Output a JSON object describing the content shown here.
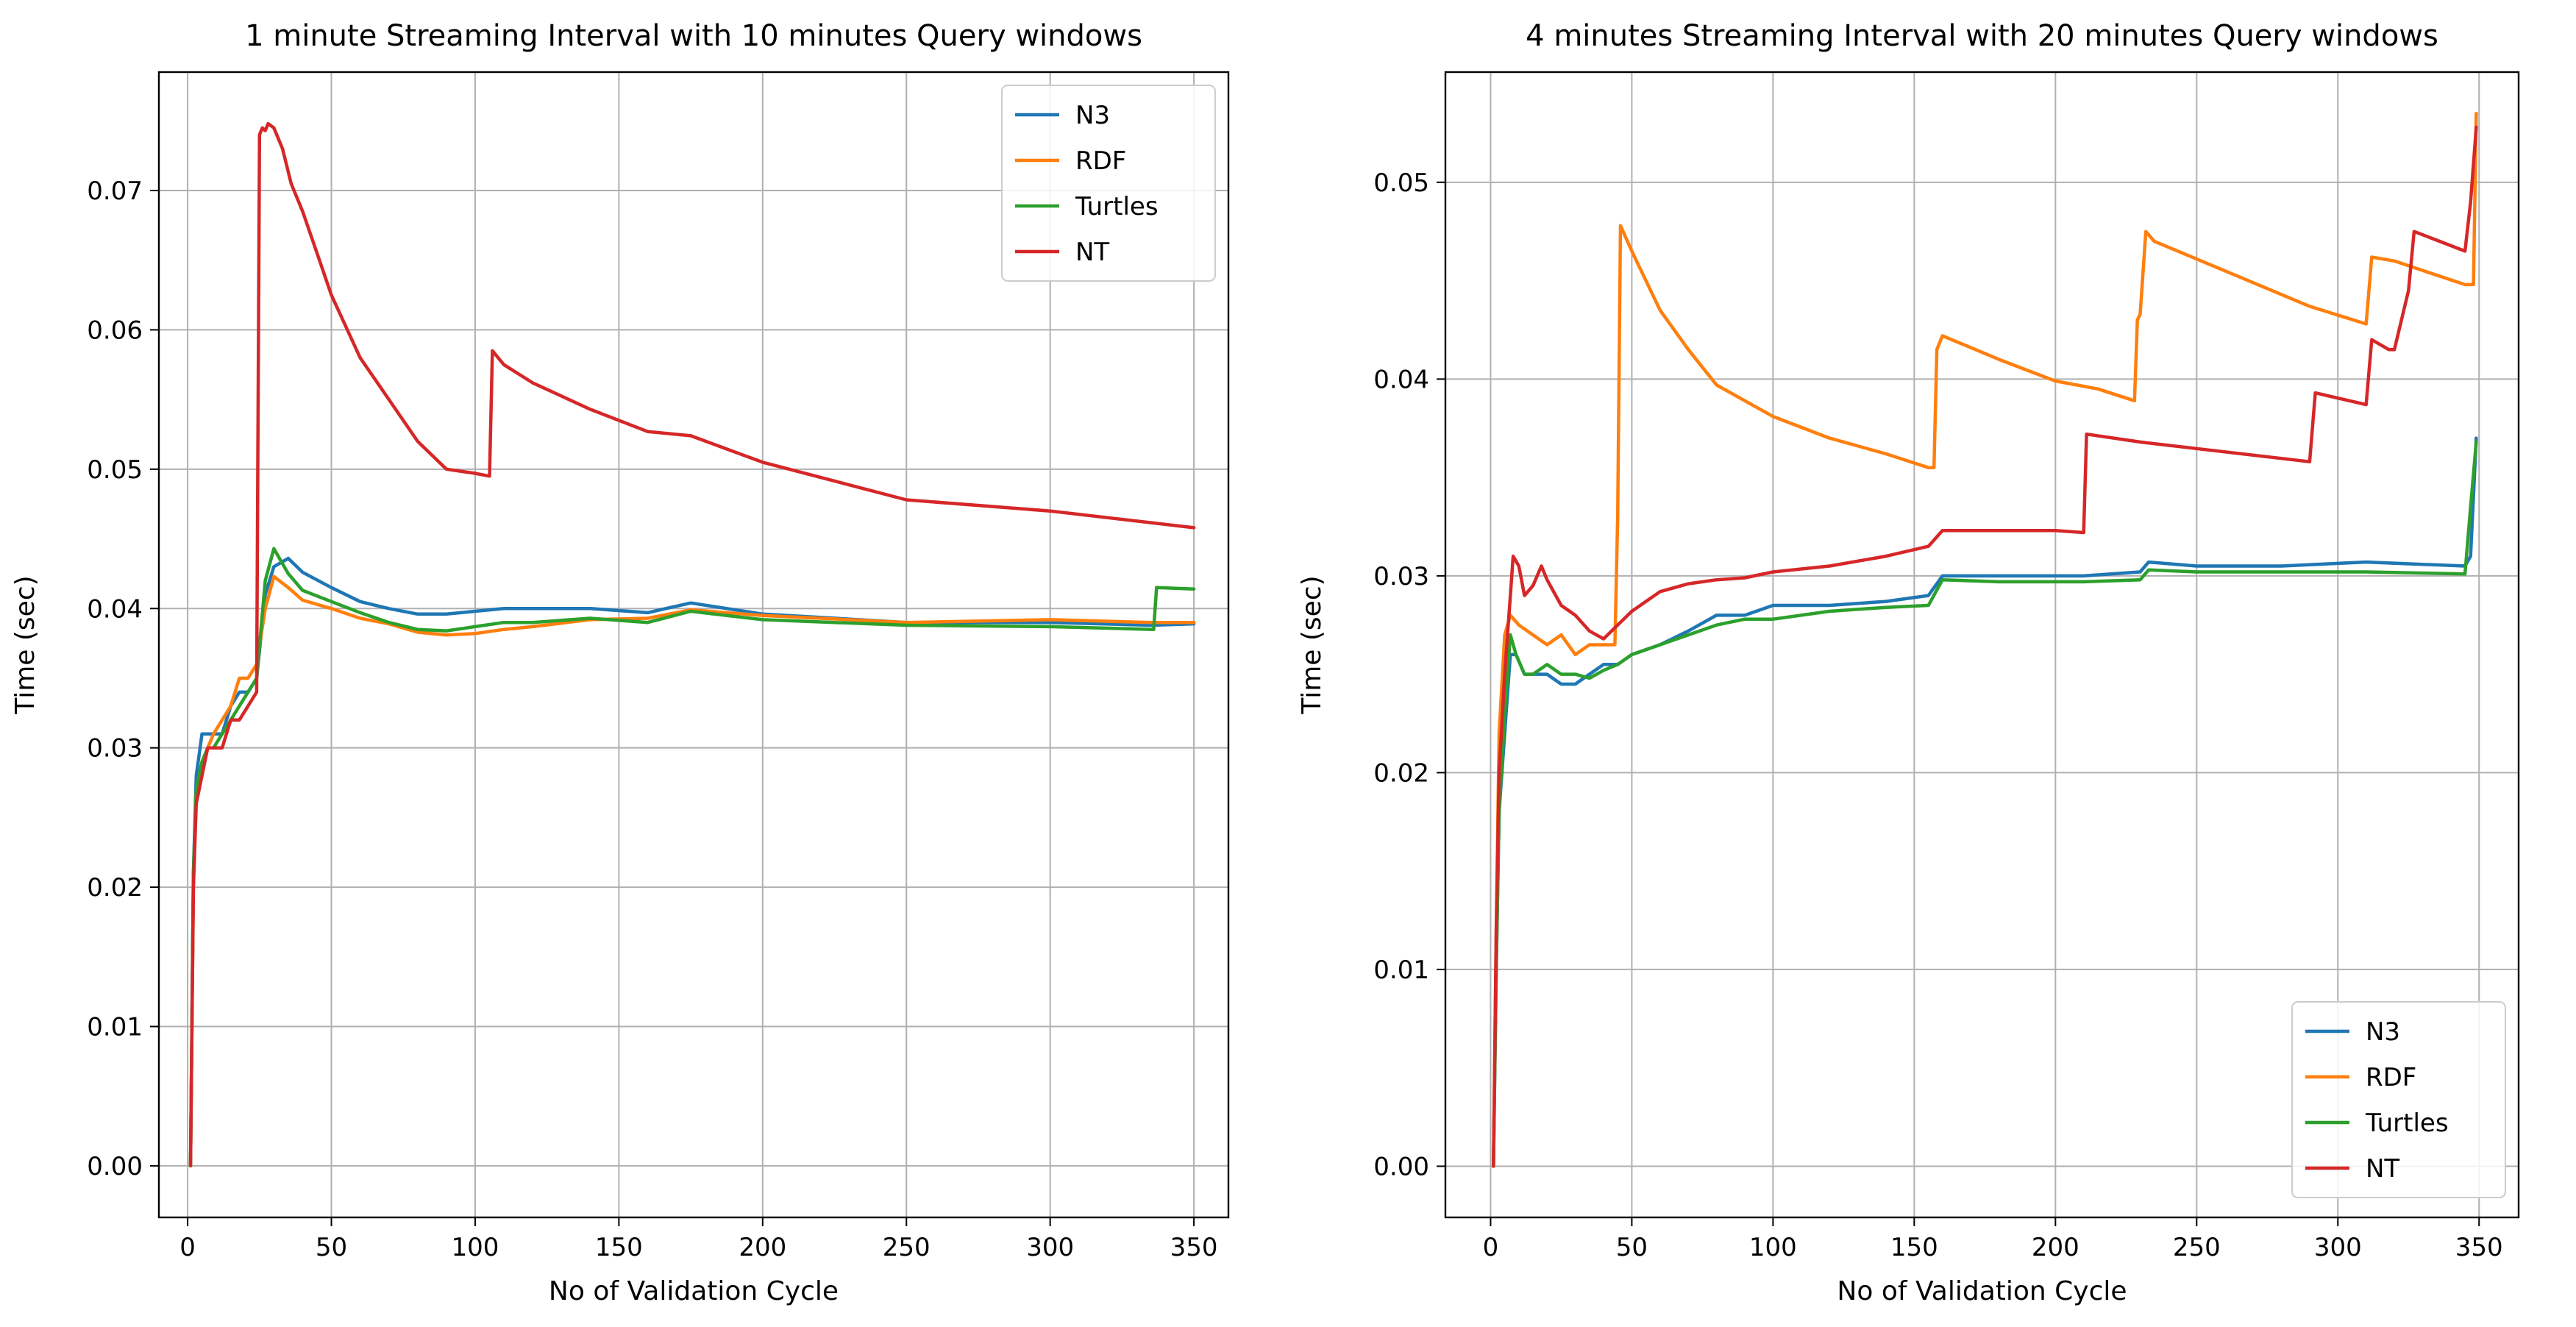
{
  "chart_data": [
    {
      "type": "line",
      "title": "1 minute Streaming Interval with 10 minutes Query windows",
      "xlabel": "No of Validation Cycle",
      "ylabel": "Time (sec)",
      "xlim": [
        -10,
        362
      ],
      "ylim": [
        -0.0037,
        0.0785
      ],
      "xticks": [
        0,
        50,
        100,
        150,
        200,
        250,
        300,
        350
      ],
      "xtick_labels": [
        "0",
        "50",
        "100",
        "150",
        "200",
        "250",
        "300",
        "350"
      ],
      "yticks": [
        0.0,
        0.01,
        0.02,
        0.03,
        0.04,
        0.05,
        0.06,
        0.07
      ],
      "ytick_labels": [
        "0.00",
        "0.01",
        "0.02",
        "0.03",
        "0.04",
        "0.05",
        "0.06",
        "0.07"
      ],
      "grid": true,
      "legend_position": "top-right",
      "series": [
        {
          "name": "N3",
          "color": "#1f77b4",
          "x": [
            1,
            2,
            3,
            5,
            7,
            9,
            12,
            15,
            18,
            21,
            24,
            27,
            30,
            35,
            40,
            50,
            60,
            70,
            80,
            90,
            100,
            110,
            120,
            140,
            160,
            175,
            200,
            250,
            300,
            335,
            350
          ],
          "y": [
            0.0,
            0.021,
            0.028,
            0.031,
            0.031,
            0.031,
            0.031,
            0.033,
            0.034,
            0.034,
            0.035,
            0.041,
            0.043,
            0.0436,
            0.0426,
            0.0415,
            0.0405,
            0.04,
            0.0396,
            0.0396,
            0.0398,
            0.04,
            0.04,
            0.04,
            0.0397,
            0.0404,
            0.0396,
            0.039,
            0.039,
            0.0388,
            0.0389
          ]
        },
        {
          "name": "RDF",
          "color": "#ff7f0e",
          "x": [
            1,
            2,
            3,
            5,
            7,
            9,
            12,
            15,
            18,
            21,
            24,
            27,
            30,
            35,
            40,
            50,
            60,
            70,
            80,
            90,
            100,
            110,
            120,
            140,
            160,
            175,
            200,
            250,
            300,
            335,
            350
          ],
          "y": [
            0.0,
            0.02,
            0.027,
            0.029,
            0.03,
            0.031,
            0.032,
            0.033,
            0.035,
            0.035,
            0.036,
            0.04,
            0.0423,
            0.0415,
            0.0406,
            0.04,
            0.0393,
            0.0389,
            0.0383,
            0.0381,
            0.0382,
            0.0385,
            0.0387,
            0.0392,
            0.0393,
            0.0399,
            0.0395,
            0.039,
            0.0392,
            0.039,
            0.039
          ]
        },
        {
          "name": "Turtles",
          "color": "#2ca02c",
          "x": [
            1,
            2,
            3,
            5,
            7,
            9,
            12,
            15,
            18,
            21,
            24,
            27,
            30,
            35,
            40,
            50,
            60,
            70,
            80,
            90,
            100,
            110,
            120,
            140,
            160,
            175,
            200,
            250,
            300,
            336,
            337,
            350
          ],
          "y": [
            0.0,
            0.021,
            0.027,
            0.029,
            0.03,
            0.03,
            0.031,
            0.032,
            0.033,
            0.034,
            0.035,
            0.042,
            0.0443,
            0.0425,
            0.0413,
            0.0405,
            0.0397,
            0.039,
            0.0385,
            0.0384,
            0.0387,
            0.039,
            0.039,
            0.0393,
            0.039,
            0.0398,
            0.0392,
            0.0388,
            0.0387,
            0.0385,
            0.0415,
            0.0414
          ]
        },
        {
          "name": "NT",
          "color": "#d62728",
          "x": [
            1,
            2,
            3,
            5,
            7,
            9,
            12,
            15,
            18,
            21,
            24,
            25,
            26,
            27,
            28,
            30,
            33,
            36,
            40,
            45,
            50,
            60,
            70,
            80,
            90,
            100,
            105,
            106,
            110,
            120,
            140,
            160,
            175,
            200,
            250,
            300,
            350
          ],
          "y": [
            0.0,
            0.02,
            0.026,
            0.028,
            0.03,
            0.03,
            0.03,
            0.032,
            0.032,
            0.033,
            0.034,
            0.074,
            0.0745,
            0.0743,
            0.0748,
            0.0745,
            0.073,
            0.0705,
            0.0685,
            0.0655,
            0.0625,
            0.058,
            0.055,
            0.052,
            0.05,
            0.0497,
            0.0495,
            0.0585,
            0.0575,
            0.0562,
            0.0543,
            0.0527,
            0.0524,
            0.0505,
            0.0478,
            0.047,
            0.0458
          ]
        }
      ]
    },
    {
      "type": "line",
      "title": "4 minutes Streaming Interval with 20 minutes Query windows",
      "xlabel": "No of Validation Cycle",
      "ylabel": "Time (sec)",
      "xlim": [
        -16,
        364
      ],
      "ylim": [
        -0.0026,
        0.0556
      ],
      "xticks": [
        0,
        50,
        100,
        150,
        200,
        250,
        300,
        350
      ],
      "xtick_labels": [
        "0",
        "50",
        "100",
        "150",
        "200",
        "250",
        "300",
        "350"
      ],
      "yticks": [
        0.0,
        0.01,
        0.02,
        0.03,
        0.04,
        0.05
      ],
      "ytick_labels": [
        "0.00",
        "0.01",
        "0.02",
        "0.03",
        "0.04",
        "0.05"
      ],
      "grid": true,
      "legend_position": "bottom-right",
      "series": [
        {
          "name": "N3",
          "color": "#1f77b4",
          "x": [
            1,
            2,
            3,
            5,
            7,
            9,
            12,
            15,
            20,
            25,
            30,
            35,
            40,
            45,
            50,
            60,
            70,
            80,
            90,
            100,
            120,
            140,
            155,
            160,
            180,
            210,
            230,
            233,
            250,
            280,
            310,
            345,
            347,
            349
          ],
          "y": [
            0.0,
            0.01,
            0.018,
            0.022,
            0.026,
            0.026,
            0.025,
            0.025,
            0.025,
            0.0245,
            0.0245,
            0.025,
            0.0255,
            0.0255,
            0.026,
            0.0265,
            0.0272,
            0.028,
            0.028,
            0.0285,
            0.0285,
            0.0287,
            0.029,
            0.03,
            0.03,
            0.03,
            0.0302,
            0.0307,
            0.0305,
            0.0305,
            0.0307,
            0.0305,
            0.031,
            0.037
          ]
        },
        {
          "name": "RDF",
          "color": "#ff7f0e",
          "x": [
            1,
            2,
            3,
            5,
            7,
            10,
            15,
            20,
            25,
            30,
            35,
            40,
            44,
            45,
            46,
            50,
            60,
            70,
            80,
            100,
            120,
            140,
            155,
            157,
            158,
            160,
            180,
            200,
            215,
            228,
            229,
            230,
            232,
            235,
            260,
            290,
            310,
            312,
            320,
            345,
            348,
            349
          ],
          "y": [
            0.0,
            0.012,
            0.022,
            0.027,
            0.028,
            0.0275,
            0.027,
            0.0265,
            0.027,
            0.026,
            0.0265,
            0.0265,
            0.0265,
            0.033,
            0.0478,
            0.0465,
            0.0435,
            0.0415,
            0.0397,
            0.0381,
            0.037,
            0.0362,
            0.0355,
            0.0355,
            0.0415,
            0.0422,
            0.041,
            0.0399,
            0.0395,
            0.0389,
            0.043,
            0.0433,
            0.0475,
            0.047,
            0.0455,
            0.0437,
            0.0428,
            0.0462,
            0.046,
            0.0448,
            0.0448,
            0.0535
          ]
        },
        {
          "name": "Turtles",
          "color": "#2ca02c",
          "x": [
            1,
            2,
            3,
            5,
            7,
            9,
            12,
            15,
            20,
            25,
            30,
            35,
            40,
            45,
            50,
            60,
            70,
            80,
            90,
            100,
            120,
            140,
            155,
            160,
            180,
            210,
            230,
            233,
            250,
            280,
            310,
            345,
            347,
            349
          ],
          "y": [
            0.0,
            0.01,
            0.018,
            0.023,
            0.027,
            0.026,
            0.025,
            0.025,
            0.0255,
            0.025,
            0.025,
            0.0248,
            0.0252,
            0.0255,
            0.026,
            0.0265,
            0.027,
            0.0275,
            0.0278,
            0.0278,
            0.0282,
            0.0284,
            0.0285,
            0.0298,
            0.0297,
            0.0297,
            0.0298,
            0.0303,
            0.0302,
            0.0302,
            0.0302,
            0.0301,
            0.0335,
            0.0368
          ]
        },
        {
          "name": "NT",
          "color": "#d62728",
          "x": [
            1,
            2,
            3,
            5,
            7,
            8,
            10,
            12,
            15,
            18,
            20,
            25,
            30,
            35,
            40,
            45,
            50,
            60,
            70,
            80,
            90,
            100,
            120,
            140,
            155,
            160,
            180,
            200,
            210,
            211,
            230,
            260,
            290,
            292,
            310,
            312,
            318,
            320,
            325,
            327,
            345,
            347,
            349
          ],
          "y": [
            0.0,
            0.012,
            0.02,
            0.025,
            0.029,
            0.031,
            0.0305,
            0.029,
            0.0295,
            0.0305,
            0.0298,
            0.0285,
            0.028,
            0.0272,
            0.0268,
            0.0275,
            0.0282,
            0.0292,
            0.0296,
            0.0298,
            0.0299,
            0.0302,
            0.0305,
            0.031,
            0.0315,
            0.0323,
            0.0323,
            0.0323,
            0.0322,
            0.0372,
            0.0368,
            0.0363,
            0.0358,
            0.0393,
            0.0387,
            0.042,
            0.0415,
            0.0415,
            0.0445,
            0.0475,
            0.0465,
            0.049,
            0.0528
          ]
        }
      ]
    }
  ]
}
